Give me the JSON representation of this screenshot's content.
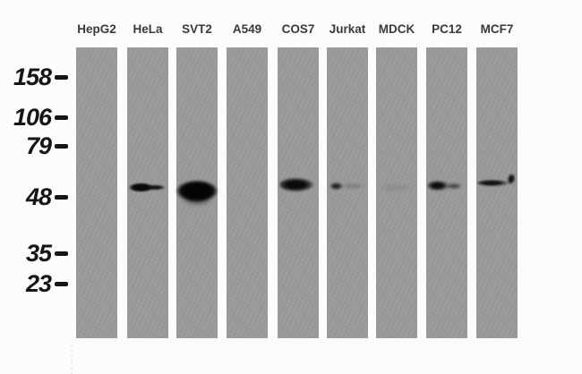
{
  "figure": {
    "type": "western-blot",
    "lanes": [
      {
        "label": "HepG2",
        "band_intensity": "none"
      },
      {
        "label": "HeLa",
        "band_intensity": "strong"
      },
      {
        "label": "SVT2",
        "band_intensity": "very-strong"
      },
      {
        "label": "A549",
        "band_intensity": "none"
      },
      {
        "label": "COS7",
        "band_intensity": "strong"
      },
      {
        "label": "Jurkat",
        "band_intensity": "weak"
      },
      {
        "label": "MDCK",
        "band_intensity": "very-faint"
      },
      {
        "label": "PC12",
        "band_intensity": "moderate"
      },
      {
        "label": "MCF7",
        "band_intensity": "moderate"
      }
    ],
    "markers_kda": [
      "158",
      "106",
      "79",
      "48",
      "35",
      "23"
    ]
  },
  "colors": {
    "background": "#fcfcfc",
    "membrane_gray": "#999999",
    "band_black": "#0d0d0d",
    "lane_label_text": "#3a3a3a",
    "marker_text": "#161616"
  }
}
